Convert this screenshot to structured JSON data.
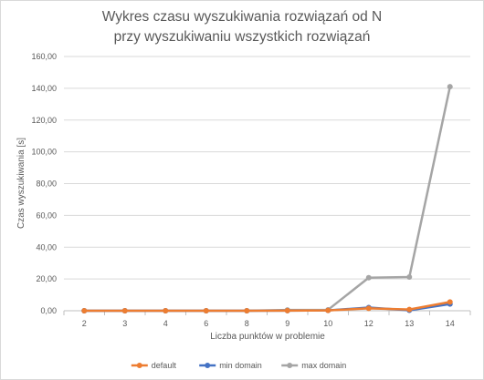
{
  "chart_data": {
    "type": "line",
    "title_line1": "Wykres czasu wyszukiwania rozwiązań od N",
    "title_line2": "przy wyszukiwaniu wszystkich rozwiązań",
    "xlabel": "Liczba punktów w problemie",
    "ylabel": "Czas wyszukiwania [s]",
    "categories": [
      "2",
      "3",
      "4",
      "6",
      "8",
      "9",
      "10",
      "12",
      "13",
      "14"
    ],
    "ylim": [
      0,
      160
    ],
    "yticks": [
      "0,00",
      "20,00",
      "40,00",
      "60,00",
      "80,00",
      "100,00",
      "120,00",
      "140,00",
      "160,00"
    ],
    "grid": true,
    "legend_position": "bottom",
    "series": [
      {
        "name": "default",
        "color": "#ED7D31",
        "values": [
          0.0,
          0.0,
          0.0,
          0.0,
          0.0,
          0.1,
          0.2,
          1.5,
          0.8,
          5.5
        ]
      },
      {
        "name": "min domain",
        "color": "#4472C4",
        "values": [
          0.0,
          0.0,
          0.0,
          0.0,
          0.0,
          0.1,
          0.2,
          2.0,
          0.3,
          4.2
        ]
      },
      {
        "name": "max domain",
        "color": "#A5A5A5",
        "values": [
          0.0,
          0.0,
          0.0,
          0.0,
          0.0,
          0.5,
          0.6,
          20.8,
          21.2,
          141.0
        ]
      }
    ]
  }
}
